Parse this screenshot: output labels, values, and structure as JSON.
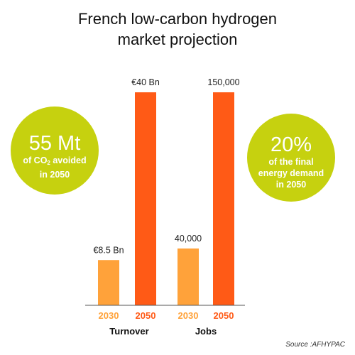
{
  "title": [
    "French low-carbon hydrogen",
    "market projection"
  ],
  "source": "Source :AFHYPAC",
  "callouts": {
    "left": {
      "value": "55 Mt",
      "line1_a": "of CO",
      "line1_sub": "2",
      "line1_b": " avoided",
      "line2": "in 2050"
    },
    "right": {
      "value": "20%",
      "line1": "of the final",
      "line2": "energy demand",
      "line3": "in 2050"
    }
  },
  "colors": {
    "bar_2030": "#ffa23a",
    "bar_2050": "#ff5a16",
    "callout": "#c6d10f",
    "axis": "#555555"
  },
  "chart_data": [
    {
      "type": "bar",
      "title": "Turnover",
      "categories": [
        "2030",
        "2050"
      ],
      "values": [
        8.5,
        40
      ],
      "unit": "€ Bn",
      "data_labels": [
        "€8.5 Bn",
        "€40 Bn"
      ],
      "colors": [
        "#ffa23a",
        "#ff5a16"
      ]
    },
    {
      "type": "bar",
      "title": "Jobs",
      "categories": [
        "2030",
        "2050"
      ],
      "values": [
        40000,
        150000
      ],
      "data_labels": [
        "40,000",
        "150,000"
      ],
      "colors": [
        "#ffa23a",
        "#ff5a16"
      ]
    }
  ]
}
